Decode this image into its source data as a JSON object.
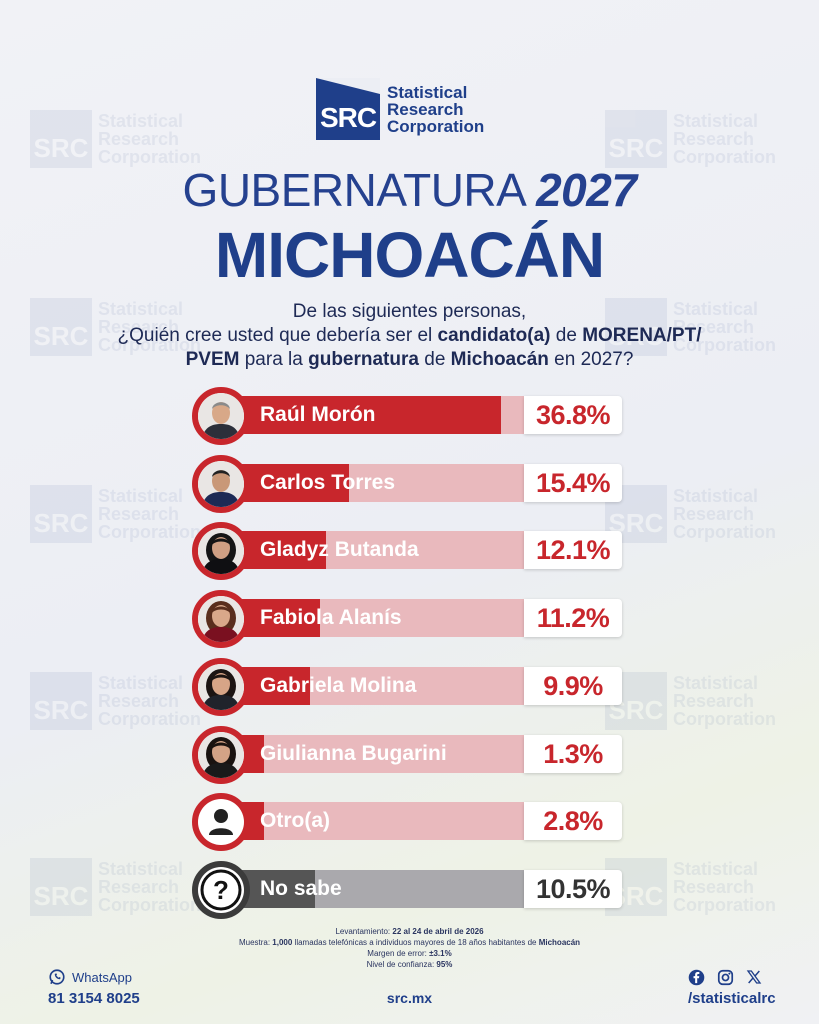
{
  "brand": {
    "logo_letters": "SRC",
    "logo_name_lines": [
      "Statistical",
      "Research",
      "Corporation"
    ]
  },
  "title": {
    "line1_main": "GUBERNATURA",
    "line1_year": "2027",
    "line2": "MICHOACÁN"
  },
  "question": {
    "line1": "De las siguientes personas,",
    "line2_a": "¿Quién cree usted que debería ser el ",
    "line2_b": "candidato(a)",
    "line2_c": " de ",
    "line2_d": "MORENA/PT/",
    "line3_a": "PVEM",
    "line3_b": " para la ",
    "line3_c": "gubernatura",
    "line3_d": " de ",
    "line3_e": "Michoacán",
    "line3_f": " en 2027?"
  },
  "chart_data": {
    "type": "bar",
    "categories": [
      "Raúl Morón",
      "Carlos Torres",
      "Gladyz Butanda",
      "Fabiola Alanís",
      "Gabriela Molina",
      "Giulianna Bugarini",
      "Otro(a)",
      "No sabe"
    ],
    "values": [
      36.8,
      15.4,
      12.1,
      11.2,
      9.9,
      1.3,
      2.8,
      10.5
    ],
    "labels": [
      "36.8%",
      "15.4%",
      "12.1%",
      "11.2%",
      "9.9%",
      "1.3%",
      "2.8%",
      "10.5%"
    ],
    "colors": {
      "primary": "#c8262c",
      "track": "#e9b9bd",
      "undecided": "#555555"
    },
    "xlim": [
      0,
      40
    ]
  },
  "footer": {
    "l1_a": "Levantamiento: ",
    "l1_b": "22 al 24 de abril de 2026",
    "l2_a": "Muestra: ",
    "l2_b": "1,000",
    "l2_c": " llamadas telefónicas a individuos mayores de 18 años habitantes de ",
    "l2_d": "Michoacán",
    "l3_a": "Margen de error: ",
    "l3_b": "±3.1%",
    "l4_a": "Nivel de confianza: ",
    "l4_b": "95%"
  },
  "contact": {
    "whatsapp_label": "WhatsApp",
    "whatsapp_number": "81 3154 8025",
    "site": "src.mx",
    "handle": "/statisticalrc"
  },
  "icons": [
    "whatsapp-icon",
    "facebook-icon",
    "instagram-icon",
    "x-icon",
    "person-icon",
    "question-icon"
  ]
}
